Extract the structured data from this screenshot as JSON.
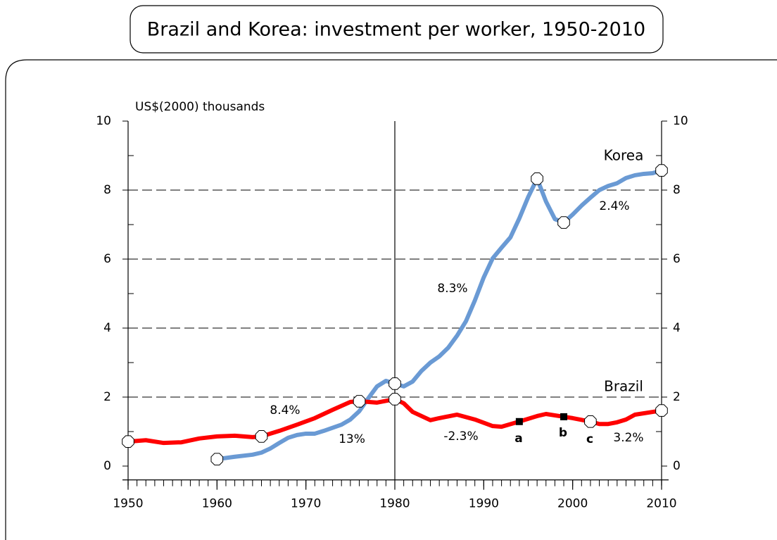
{
  "chart_data": {
    "type": "line",
    "title": "Brazil and Korea: investment per worker, 1950-2010",
    "y_label": "US$(2000)  thousands",
    "xlim": [
      1950,
      2010
    ],
    "xticks": [
      1950,
      1960,
      1970,
      1980,
      1990,
      2000,
      2010
    ],
    "ylim": [
      -0.4,
      10
    ],
    "yticks": [
      0,
      2,
      4,
      6,
      8,
      10
    ],
    "grid": true,
    "vline": 1980,
    "series": [
      {
        "name": "Korea",
        "color": "#6a9ad4",
        "x": [
          1960,
          1962,
          1964,
          1965,
          1966,
          1967,
          1968,
          1969,
          1970,
          1971,
          1972,
          1974,
          1975,
          1976,
          1977,
          1978,
          1979,
          1980,
          1981,
          1982,
          1983,
          1984,
          1985,
          1986,
          1987,
          1988,
          1989,
          1990,
          1991,
          1992,
          1993,
          1994,
          1995,
          1996,
          1997,
          1998,
          1999,
          2000,
          2001,
          2002,
          2003,
          2004,
          2005,
          2006,
          2007,
          2008,
          2009,
          2010
        ],
        "values": [
          0.2,
          0.27,
          0.33,
          0.39,
          0.51,
          0.67,
          0.82,
          0.9,
          0.94,
          0.94,
          1.02,
          1.2,
          1.35,
          1.59,
          1.96,
          2.31,
          2.47,
          2.39,
          2.31,
          2.45,
          2.76,
          3.0,
          3.18,
          3.43,
          3.78,
          4.2,
          4.8,
          5.47,
          6.02,
          6.33,
          6.63,
          7.18,
          7.8,
          8.33,
          7.67,
          7.16,
          7.06,
          7.29,
          7.55,
          7.78,
          8.0,
          8.12,
          8.2,
          8.35,
          8.43,
          8.47,
          8.49,
          8.57
        ],
        "markers": [
          1960,
          1980,
          1996,
          1999,
          2010
        ]
      },
      {
        "name": "Brazil",
        "color": "#ff0000",
        "x": [
          1950,
          1952,
          1954,
          1956,
          1958,
          1960,
          1962,
          1964,
          1965,
          1967,
          1969,
          1971,
          1973,
          1975,
          1976,
          1978,
          1980,
          1981,
          1982,
          1984,
          1985,
          1987,
          1989,
          1991,
          1992,
          1994,
          1996,
          1997,
          1999,
          2000,
          2002,
          2003,
          2004,
          2005,
          2006,
          2007,
          2009,
          2010
        ],
        "values": [
          0.71,
          0.75,
          0.67,
          0.69,
          0.8,
          0.86,
          0.88,
          0.84,
          0.86,
          1.02,
          1.2,
          1.39,
          1.63,
          1.86,
          1.88,
          1.84,
          1.94,
          1.82,
          1.57,
          1.33,
          1.39,
          1.49,
          1.35,
          1.16,
          1.14,
          1.29,
          1.45,
          1.51,
          1.43,
          1.39,
          1.29,
          1.22,
          1.22,
          1.27,
          1.35,
          1.49,
          1.57,
          1.61
        ],
        "markers": [
          1950,
          1965,
          1976,
          1980,
          2002,
          2010
        ],
        "square_markers": [
          1994,
          1999
        ]
      }
    ],
    "annotations": [
      "8.4%",
      "13%",
      "-2.3%",
      "8.3%",
      "2.4%",
      "3.2%",
      "a",
      "b",
      "c"
    ]
  }
}
